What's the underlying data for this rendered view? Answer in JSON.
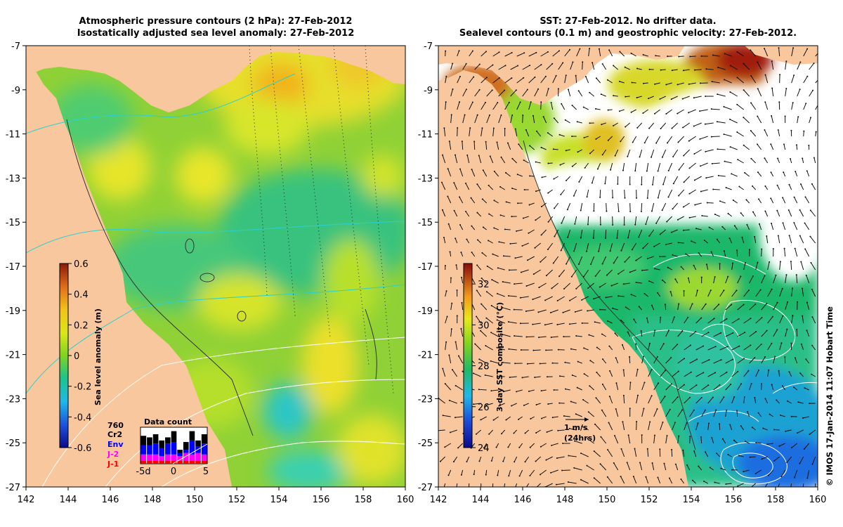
{
  "left_panel": {
    "title_line1": "Atmospheric pressure contours (2 hPa): 27-Feb-2012",
    "title_line2": "Isostatically adjusted sea level anomaly: 27-Feb-2012",
    "colorbar": {
      "label": "Sea level anomaly (m)",
      "ticks": [
        "0.6",
        "0.4",
        "0.2",
        "0",
        "-0.2",
        "-0.4",
        "-0.6"
      ],
      "tick_values": [
        0.6,
        0.4,
        0.2,
        0,
        -0.2,
        -0.4,
        -0.6
      ],
      "range": [
        -0.6,
        0.6
      ]
    },
    "data_count": {
      "title": "Data count",
      "max_label": "760",
      "xticks": [
        "-5d",
        "0",
        "5"
      ],
      "legend": [
        {
          "label": "Cr2",
          "color": "#000000"
        },
        {
          "label": "Env",
          "color": "#0000ff"
        },
        {
          "label": "J-2",
          "color": "#ff00ff"
        },
        {
          "label": "J-1",
          "color": "#ff0000"
        }
      ],
      "bars": [
        {
          "cr2": 0.3,
          "env": 0.3,
          "j2": 0.2,
          "j1": 0.1
        },
        {
          "cr2": 0.25,
          "env": 0.3,
          "j2": 0.2,
          "j1": 0.1
        },
        {
          "cr2": 0.3,
          "env": 0.35,
          "j2": 0.2,
          "j1": 0.1
        },
        {
          "cr2": 0.25,
          "env": 0.25,
          "j2": 0.15,
          "j1": 0.1
        },
        {
          "cr2": 0.2,
          "env": 0.35,
          "j2": 0.2,
          "j1": 0.1
        },
        {
          "cr2": 0.35,
          "env": 0.4,
          "j2": 0.2,
          "j1": 0.1
        },
        {
          "cr2": 0.1,
          "env": 0.1,
          "j2": 0.15,
          "j1": 0.1
        },
        {
          "cr2": 0.25,
          "env": 0.1,
          "j2": 0.25,
          "j1": 0.1
        },
        {
          "cr2": 0.3,
          "env": 0.45,
          "j2": 0.2,
          "j1": 0.1
        },
        {
          "cr2": 0.2,
          "env": 0.2,
          "j2": 0.25,
          "j1": 0.1
        },
        {
          "cr2": 0.3,
          "env": 0.35,
          "j2": 0.2,
          "j1": 0.1
        }
      ]
    }
  },
  "right_panel": {
    "title_line1": "SST: 27-Feb-2012. No drifter data.",
    "title_line2": "Sealevel contours (0.1 m) and geostrophic velocity: 27-Feb-2012.",
    "colorbar": {
      "label": "3-day SST composite (°C)",
      "ticks": [
        "32",
        "30",
        "28",
        "26",
        "24"
      ],
      "tick_values": [
        32,
        30,
        28,
        26,
        24
      ],
      "range": [
        24,
        33
      ]
    },
    "velocity_scale": {
      "label": "1 m/s",
      "sublabel": "(24hrs)"
    }
  },
  "axes": {
    "x_ticks": [
      "142",
      "144",
      "146",
      "148",
      "150",
      "152",
      "154",
      "156",
      "158",
      "160"
    ],
    "y_ticks": [
      "-7",
      "-9",
      "-11",
      "-13",
      "-15",
      "-17",
      "-19",
      "-21",
      "-23",
      "-25",
      "-27"
    ],
    "lon_range": [
      142,
      160
    ],
    "lat_range": [
      -27,
      -7
    ]
  },
  "credit": "© IMOS 17-Jan-2014 11:07 Hobart Time",
  "colors": {
    "land": "#f9c79d",
    "sst_missing": "#ffffff"
  }
}
